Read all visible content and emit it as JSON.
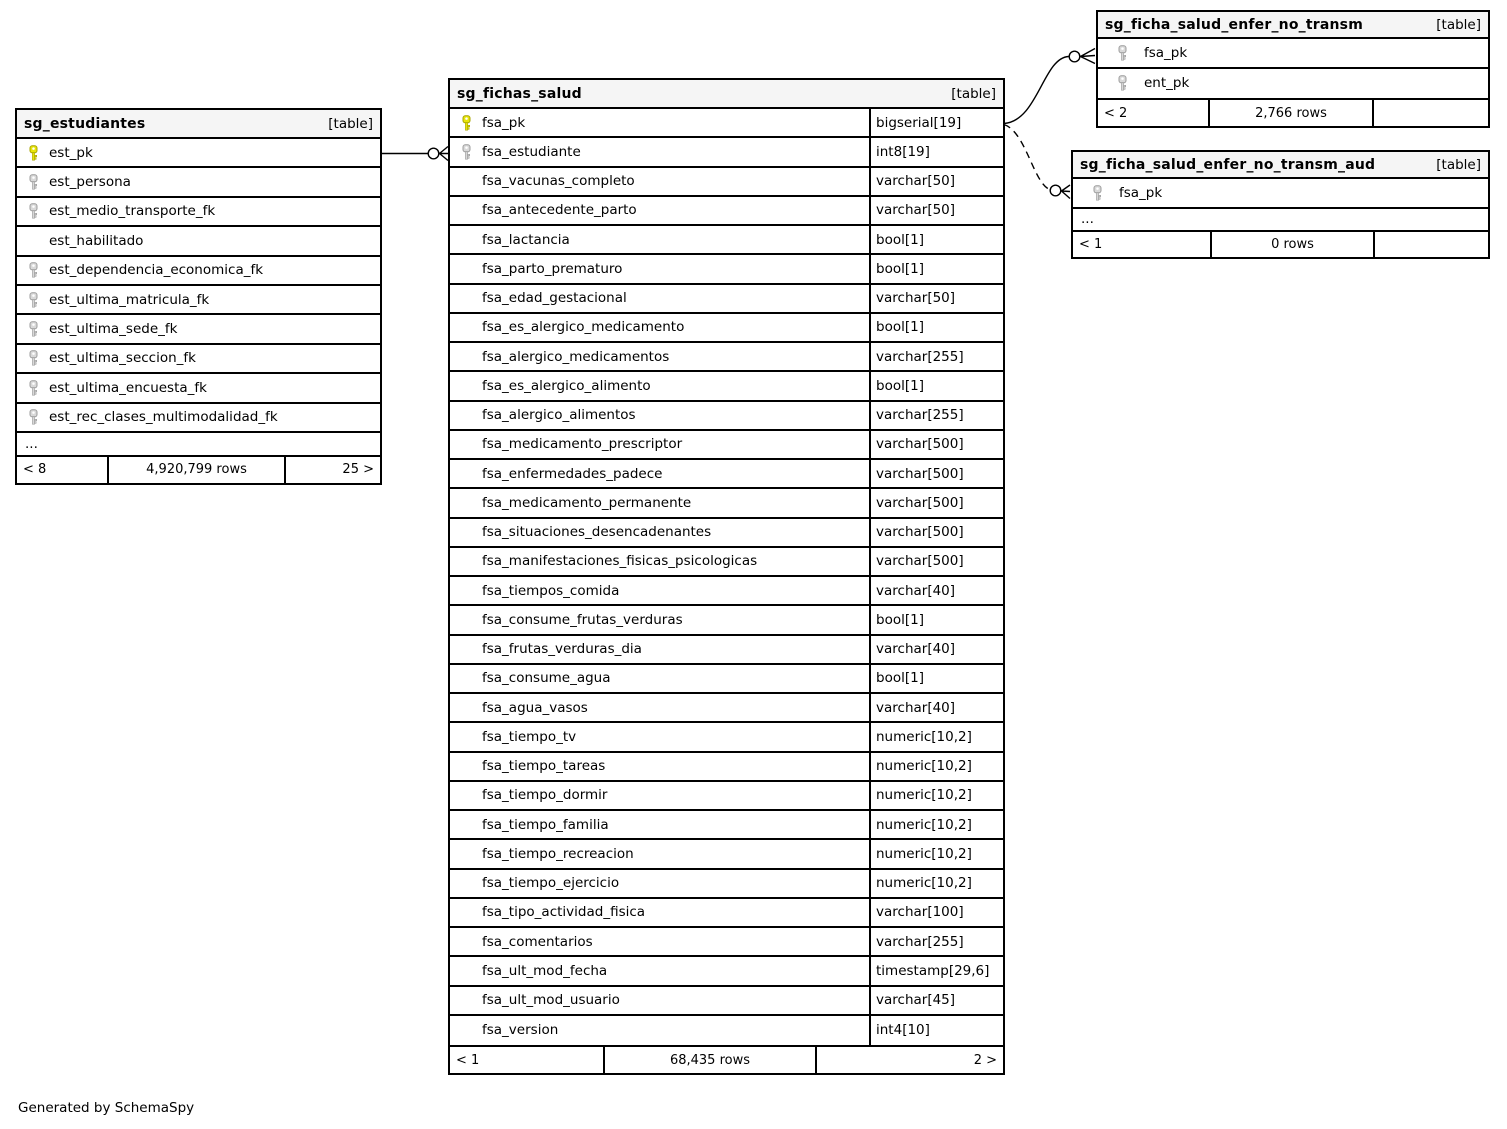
{
  "page": {
    "credit": "Generated by SchemaSpy"
  },
  "colors": {
    "pk_key_fill": "#e8e50a",
    "pk_key_stroke": "#a8a400",
    "fk_key_fill": "#d9d9d9",
    "fk_key_stroke": "#9c9c9c",
    "header_bg": "#f5f5f5",
    "edge": "#000000"
  },
  "tables": {
    "estudiantes": {
      "name": "sg_estudiantes",
      "tag": "[table]",
      "columns": [
        {
          "name": "est_pk",
          "key": "pk"
        },
        {
          "name": "est_persona",
          "key": "fk"
        },
        {
          "name": "est_medio_transporte_fk",
          "key": "fk"
        },
        {
          "name": "est_habilitado",
          "key": "none"
        },
        {
          "name": "est_dependencia_economica_fk",
          "key": "fk"
        },
        {
          "name": "est_ultima_matricula_fk",
          "key": "fk"
        },
        {
          "name": "est_ultima_sede_fk",
          "key": "fk"
        },
        {
          "name": "est_ultima_seccion_fk",
          "key": "fk"
        },
        {
          "name": "est_ultima_encuesta_fk",
          "key": "fk"
        },
        {
          "name": "est_rec_clases_multimodalidad_fk",
          "key": "fk"
        },
        {
          "name": "...",
          "key": "none",
          "ellipsis": true
        }
      ],
      "footer": {
        "left": "< 8",
        "center": "4,920,799 rows",
        "right": "25 >"
      }
    },
    "fichas_salud": {
      "name": "sg_fichas_salud",
      "tag": "[table]",
      "columns": [
        {
          "name": "fsa_pk",
          "key": "pk",
          "type": "bigserial[19]"
        },
        {
          "name": "fsa_estudiante",
          "key": "fk",
          "type": "int8[19]"
        },
        {
          "name": "fsa_vacunas_completo",
          "key": "none",
          "type": "varchar[50]"
        },
        {
          "name": "fsa_antecedente_parto",
          "key": "none",
          "type": "varchar[50]"
        },
        {
          "name": "fsa_lactancia",
          "key": "none",
          "type": "bool[1]"
        },
        {
          "name": "fsa_parto_prematuro",
          "key": "none",
          "type": "bool[1]"
        },
        {
          "name": "fsa_edad_gestacional",
          "key": "none",
          "type": "varchar[50]"
        },
        {
          "name": "fsa_es_alergico_medicamento",
          "key": "none",
          "type": "bool[1]"
        },
        {
          "name": "fsa_alergico_medicamentos",
          "key": "none",
          "type": "varchar[255]"
        },
        {
          "name": "fsa_es_alergico_alimento",
          "key": "none",
          "type": "bool[1]"
        },
        {
          "name": "fsa_alergico_alimentos",
          "key": "none",
          "type": "varchar[255]"
        },
        {
          "name": "fsa_medicamento_prescriptor",
          "key": "none",
          "type": "varchar[500]"
        },
        {
          "name": "fsa_enfermedades_padece",
          "key": "none",
          "type": "varchar[500]"
        },
        {
          "name": "fsa_medicamento_permanente",
          "key": "none",
          "type": "varchar[500]"
        },
        {
          "name": "fsa_situaciones_desencadenantes",
          "key": "none",
          "type": "varchar[500]"
        },
        {
          "name": "fsa_manifestaciones_fisicas_psicologicas",
          "key": "none",
          "type": "varchar[500]"
        },
        {
          "name": "fsa_tiempos_comida",
          "key": "none",
          "type": "varchar[40]"
        },
        {
          "name": "fsa_consume_frutas_verduras",
          "key": "none",
          "type": "bool[1]"
        },
        {
          "name": "fsa_frutas_verduras_dia",
          "key": "none",
          "type": "varchar[40]"
        },
        {
          "name": "fsa_consume_agua",
          "key": "none",
          "type": "bool[1]"
        },
        {
          "name": "fsa_agua_vasos",
          "key": "none",
          "type": "varchar[40]"
        },
        {
          "name": "fsa_tiempo_tv",
          "key": "none",
          "type": "numeric[10,2]"
        },
        {
          "name": "fsa_tiempo_tareas",
          "key": "none",
          "type": "numeric[10,2]"
        },
        {
          "name": "fsa_tiempo_dormir",
          "key": "none",
          "type": "numeric[10,2]"
        },
        {
          "name": "fsa_tiempo_familia",
          "key": "none",
          "type": "numeric[10,2]"
        },
        {
          "name": "fsa_tiempo_recreacion",
          "key": "none",
          "type": "numeric[10,2]"
        },
        {
          "name": "fsa_tiempo_ejercicio",
          "key": "none",
          "type": "numeric[10,2]"
        },
        {
          "name": "fsa_tipo_actividad_fisica",
          "key": "none",
          "type": "varchar[100]"
        },
        {
          "name": "fsa_comentarios",
          "key": "none",
          "type": "varchar[255]"
        },
        {
          "name": "fsa_ult_mod_fecha",
          "key": "none",
          "type": "timestamp[29,6]"
        },
        {
          "name": "fsa_ult_mod_usuario",
          "key": "none",
          "type": "varchar[45]"
        },
        {
          "name": "fsa_version",
          "key": "none",
          "type": "int4[10]"
        }
      ],
      "footer": {
        "left": "< 1",
        "center": "68,435 rows",
        "right": "2 >"
      }
    },
    "enfer_no_transm": {
      "name": "sg_ficha_salud_enfer_no_transm",
      "tag": "[table]",
      "columns": [
        {
          "name": "fsa_pk",
          "key": "fk"
        },
        {
          "name": "ent_pk",
          "key": "fk"
        }
      ],
      "footer": {
        "left": "< 2",
        "center": "2,766 rows",
        "right": ""
      }
    },
    "enfer_no_transm_aud": {
      "name": "sg_ficha_salud_enfer_no_transm_aud",
      "tag": "[table]",
      "columns": [
        {
          "name": "fsa_pk",
          "key": "fk"
        },
        {
          "name": "...",
          "key": "none",
          "ellipsis": true
        }
      ],
      "footer": {
        "left": "< 1",
        "center": "0 rows",
        "right": ""
      }
    }
  }
}
